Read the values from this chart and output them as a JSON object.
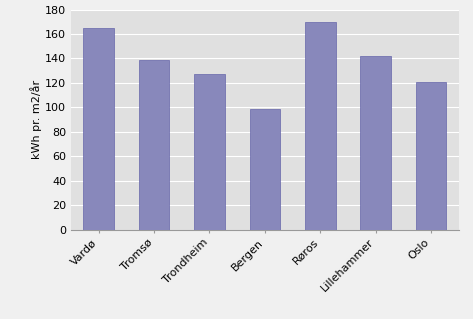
{
  "categories": [
    "Vardø",
    "Tromsø",
    "Trondheim",
    "Bergen",
    "Røros",
    "Lillehammer",
    "Oslo"
  ],
  "values": [
    165,
    139,
    127,
    99,
    170,
    142,
    121
  ],
  "bar_color": "#8888bb",
  "bar_edgecolor": "#6666aa",
  "ylabel": "kWh pr. m2/år",
  "ylim": [
    0,
    180
  ],
  "yticks": [
    0,
    20,
    40,
    60,
    80,
    100,
    120,
    140,
    160,
    180
  ],
  "background_color": "#f0f0f0",
  "plot_area_color": "#e0e0e0",
  "grid_color": "#ffffff",
  "tick_fontsize": 8,
  "label_fontsize": 8,
  "bar_width": 0.55
}
